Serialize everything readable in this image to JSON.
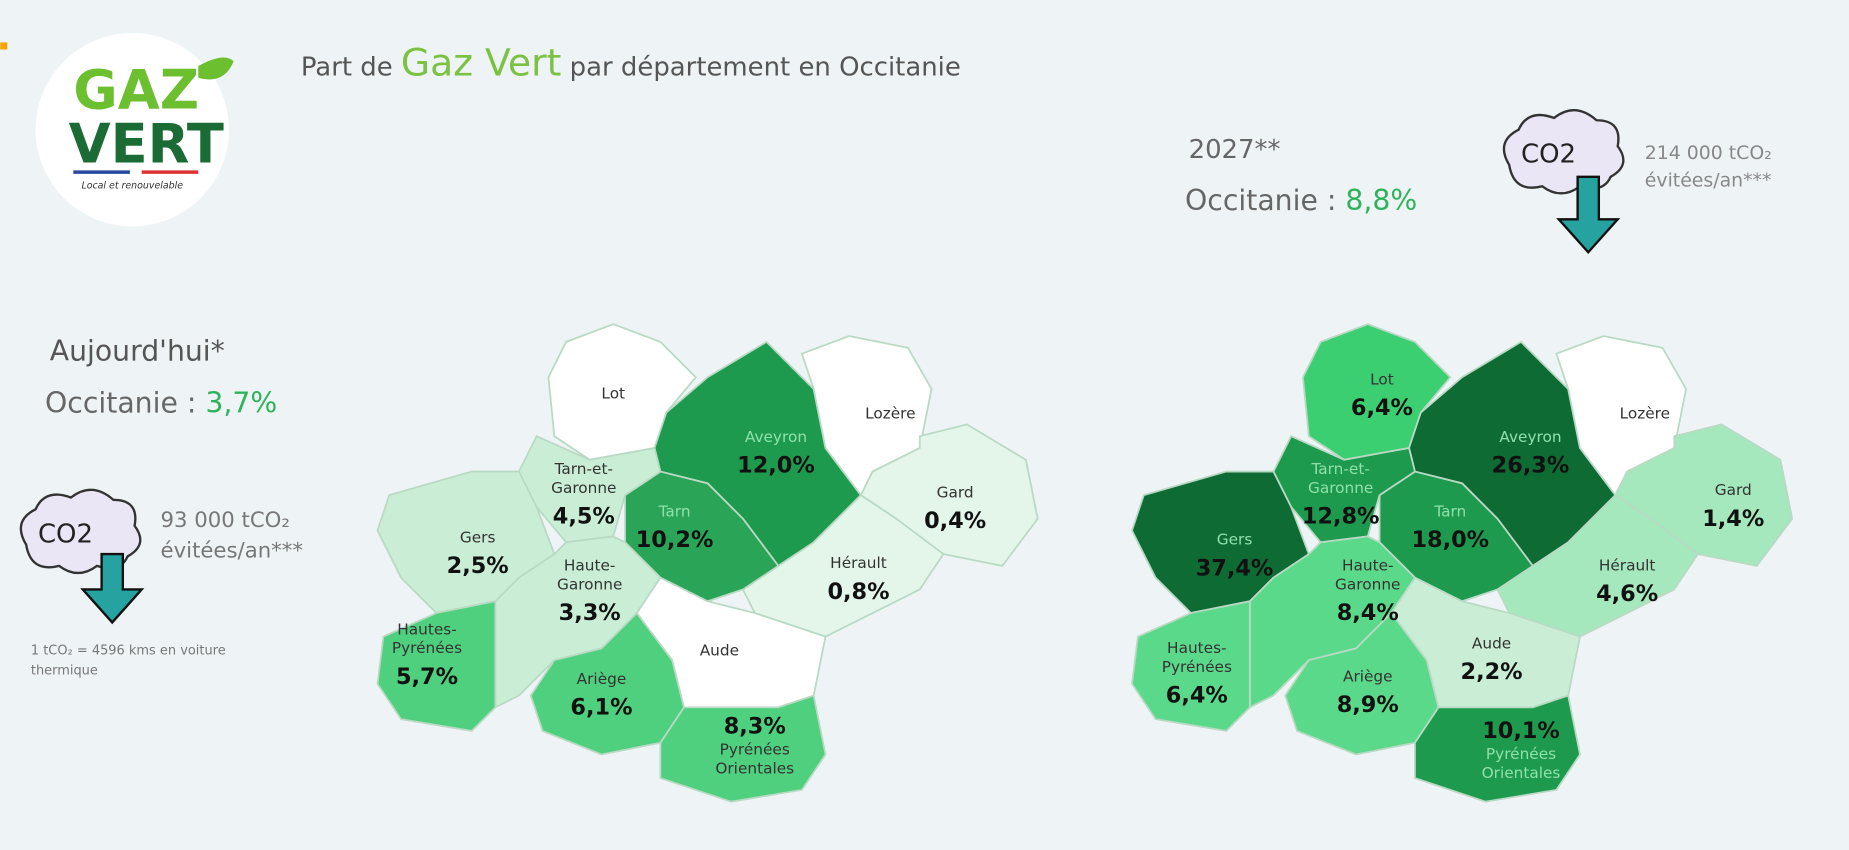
{
  "header": {
    "title_prefix": "Part de",
    "title_highlight": "Gaz Vert",
    "title_suffix": "par département en Occitanie"
  },
  "logo": {
    "line1": "GAZ",
    "line2": "VERT",
    "tagline": "Local et renouvelable"
  },
  "today": {
    "label": "Aujourd'hui*",
    "region": "Occitanie :",
    "share": "3,7%",
    "cloud": "CO2",
    "co2": "93 000 tCO₂",
    "co2_unit": "évitées/an***",
    "note": [
      "1 tCO₂ = 4596 kms en voiture",
      "thermique"
    ]
  },
  "forecast": {
    "label": "2027**",
    "region": "Occitanie :",
    "share": "8,8%",
    "cloud": "CO2",
    "co2": "214 000 tCO₂",
    "co2_unit": "évitées/an***"
  },
  "maps": [
    {
      "departments": [
        {
          "name": [
            "Lot"
          ],
          "color": "#ffffff"
        },
        {
          "name": [
            "Aveyron"
          ],
          "value": "12,0%",
          "color": "#1e9a4e"
        },
        {
          "name": [
            "Lozère"
          ],
          "color": "#ffffff"
        },
        {
          "name": [
            "Gard"
          ],
          "value": "0,4%",
          "color": "#e4f5ea"
        },
        {
          "name": [
            "Hérault"
          ],
          "value": "0,8%",
          "color": "#e4f5ea"
        },
        {
          "name": [
            "Tarn"
          ],
          "value": "10,2%",
          "color": "#2aa557"
        },
        {
          "name": [
            "Tarn-et-",
            "Garonne"
          ],
          "value": "4,5%",
          "color": "#c9eed5"
        },
        {
          "name": [
            "Gers"
          ],
          "value": "2,5%",
          "color": "#c9eed5"
        },
        {
          "name": [
            "Haute-",
            "Garonne"
          ],
          "value": "3,3%",
          "color": "#c9eed5"
        },
        {
          "name": [
            "Hautes-",
            "Pyrénées"
          ],
          "value": "5,7%",
          "color": "#4fd07e"
        },
        {
          "name": [
            "Ariège"
          ],
          "value": "6,1%",
          "color": "#4fd07e"
        },
        {
          "name": [
            "Aude"
          ],
          "color": "#ffffff"
        },
        {
          "name": [
            "Pyrénées",
            "Orientales"
          ],
          "value": "8,3%",
          "color": "#4fd07e"
        }
      ]
    },
    {
      "departments": [
        {
          "name": [
            "Lot"
          ],
          "value": "6,4%",
          "color": "#3ccf72"
        },
        {
          "name": [
            "Aveyron"
          ],
          "value": "26,3%",
          "color": "#0e6b33"
        },
        {
          "name": [
            "Lozère"
          ],
          "color": "#ffffff"
        },
        {
          "name": [
            "Gard"
          ],
          "value": "1,4%",
          "color": "#a5e8bd"
        },
        {
          "name": [
            "Hérault"
          ],
          "value": "4,6%",
          "color": "#a5e8bd"
        },
        {
          "name": [
            "Tarn"
          ],
          "value": "18,0%",
          "color": "#1e9a4e"
        },
        {
          "name": [
            "Tarn-et-",
            "Garonne"
          ],
          "value": "12,8%",
          "color": "#1e9a4e"
        },
        {
          "name": [
            "Gers"
          ],
          "value": "37,4%",
          "color": "#0e6b33"
        },
        {
          "name": [
            "Haute-",
            "Garonne"
          ],
          "value": "8,4%",
          "color": "#5bd98a"
        },
        {
          "name": [
            "Hautes-",
            "Pyrénées"
          ],
          "value": "6,4%",
          "color": "#5bd98a"
        },
        {
          "name": [
            "Ariège"
          ],
          "value": "8,9%",
          "color": "#5bd98a"
        },
        {
          "name": [
            "Aude"
          ],
          "value": "2,2%",
          "color": "#c9eed5"
        },
        {
          "name": [
            "Pyrénées",
            "Orientales"
          ],
          "value": "10,1%",
          "color": "#1e9a4e"
        }
      ]
    }
  ]
}
